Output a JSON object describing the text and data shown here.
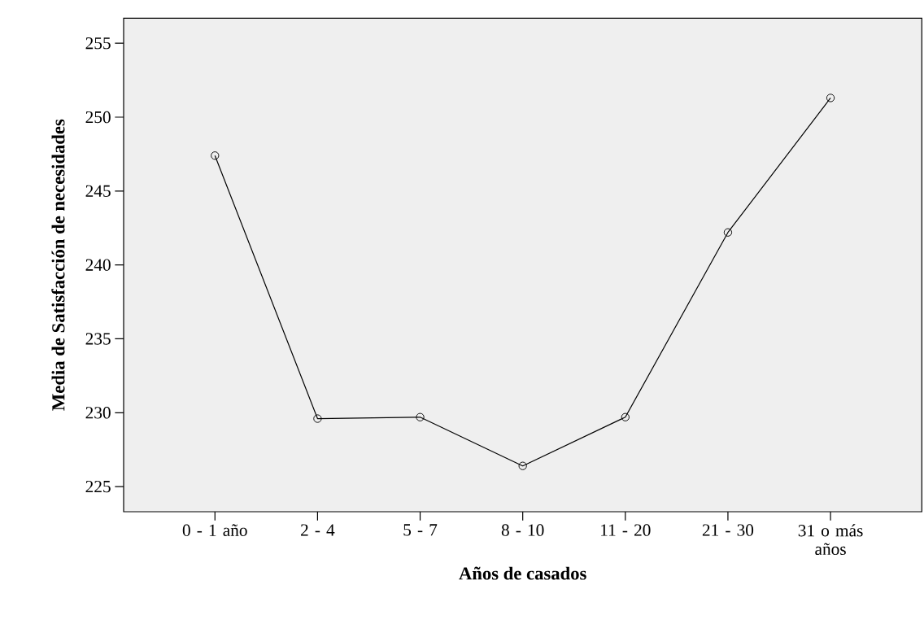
{
  "chart_data": {
    "type": "line",
    "xlabel": "Años de casados",
    "ylabel": "Media de Satisfacción de necesidades",
    "categories": [
      "0 - 1 año",
      "2 - 4",
      "5 - 7",
      "8 - 10",
      "11 - 20",
      "21 - 30",
      "31 o más años"
    ],
    "values": [
      247.4,
      229.6,
      229.7,
      226.4,
      229.7,
      242.2,
      251.3
    ],
    "color": "#000000",
    "marker": "circle",
    "line_style": "solid",
    "ylim": [
      223.3,
      256.7
    ],
    "yticks": [
      225,
      230,
      235,
      240,
      245,
      250,
      255
    ],
    "grid": false
  }
}
